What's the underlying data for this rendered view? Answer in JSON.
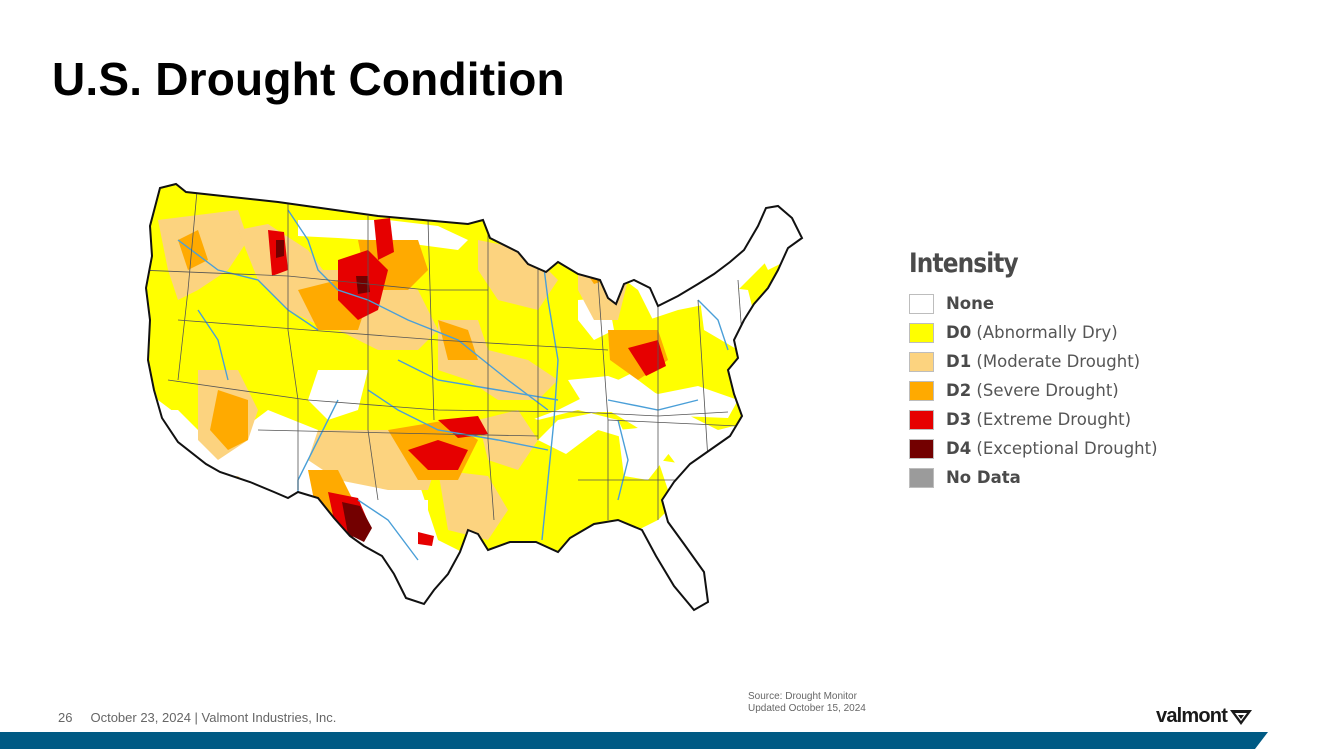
{
  "slide": {
    "title": "U.S. Drought Condition",
    "page_number": "26",
    "footer_text": "October 23, 2024  | Valmont Industries, Inc.",
    "source_line1": "Source: Drought Monitor",
    "source_line2": "Updated October 15, 2024",
    "logo_text": "valmont",
    "bar_color": "#005a84"
  },
  "map": {
    "region": "Contiguous United States",
    "colors": {
      "none": "#ffffff",
      "d0": "#ffff00",
      "d1": "#fcd37f",
      "d2": "#ffaa00",
      "d3": "#e60000",
      "d4": "#730000",
      "rivers": "#4a9fd8"
    }
  },
  "legend": {
    "title": "Intensity",
    "items": [
      {
        "code": "None",
        "desc": "",
        "color": "#ffffff"
      },
      {
        "code": "D0",
        "desc": " (Abnormally Dry)",
        "color": "#ffff00"
      },
      {
        "code": "D1",
        "desc": " (Moderate Drought)",
        "color": "#fcd37f"
      },
      {
        "code": "D2",
        "desc": " (Severe Drought)",
        "color": "#ffaa00"
      },
      {
        "code": "D3",
        "desc": " (Extreme Drought)",
        "color": "#e60000"
      },
      {
        "code": "D4",
        "desc": " (Exceptional Drought)",
        "color": "#730000"
      },
      {
        "code": "No Data",
        "desc": "",
        "color": "#9b9b9b"
      }
    ]
  }
}
